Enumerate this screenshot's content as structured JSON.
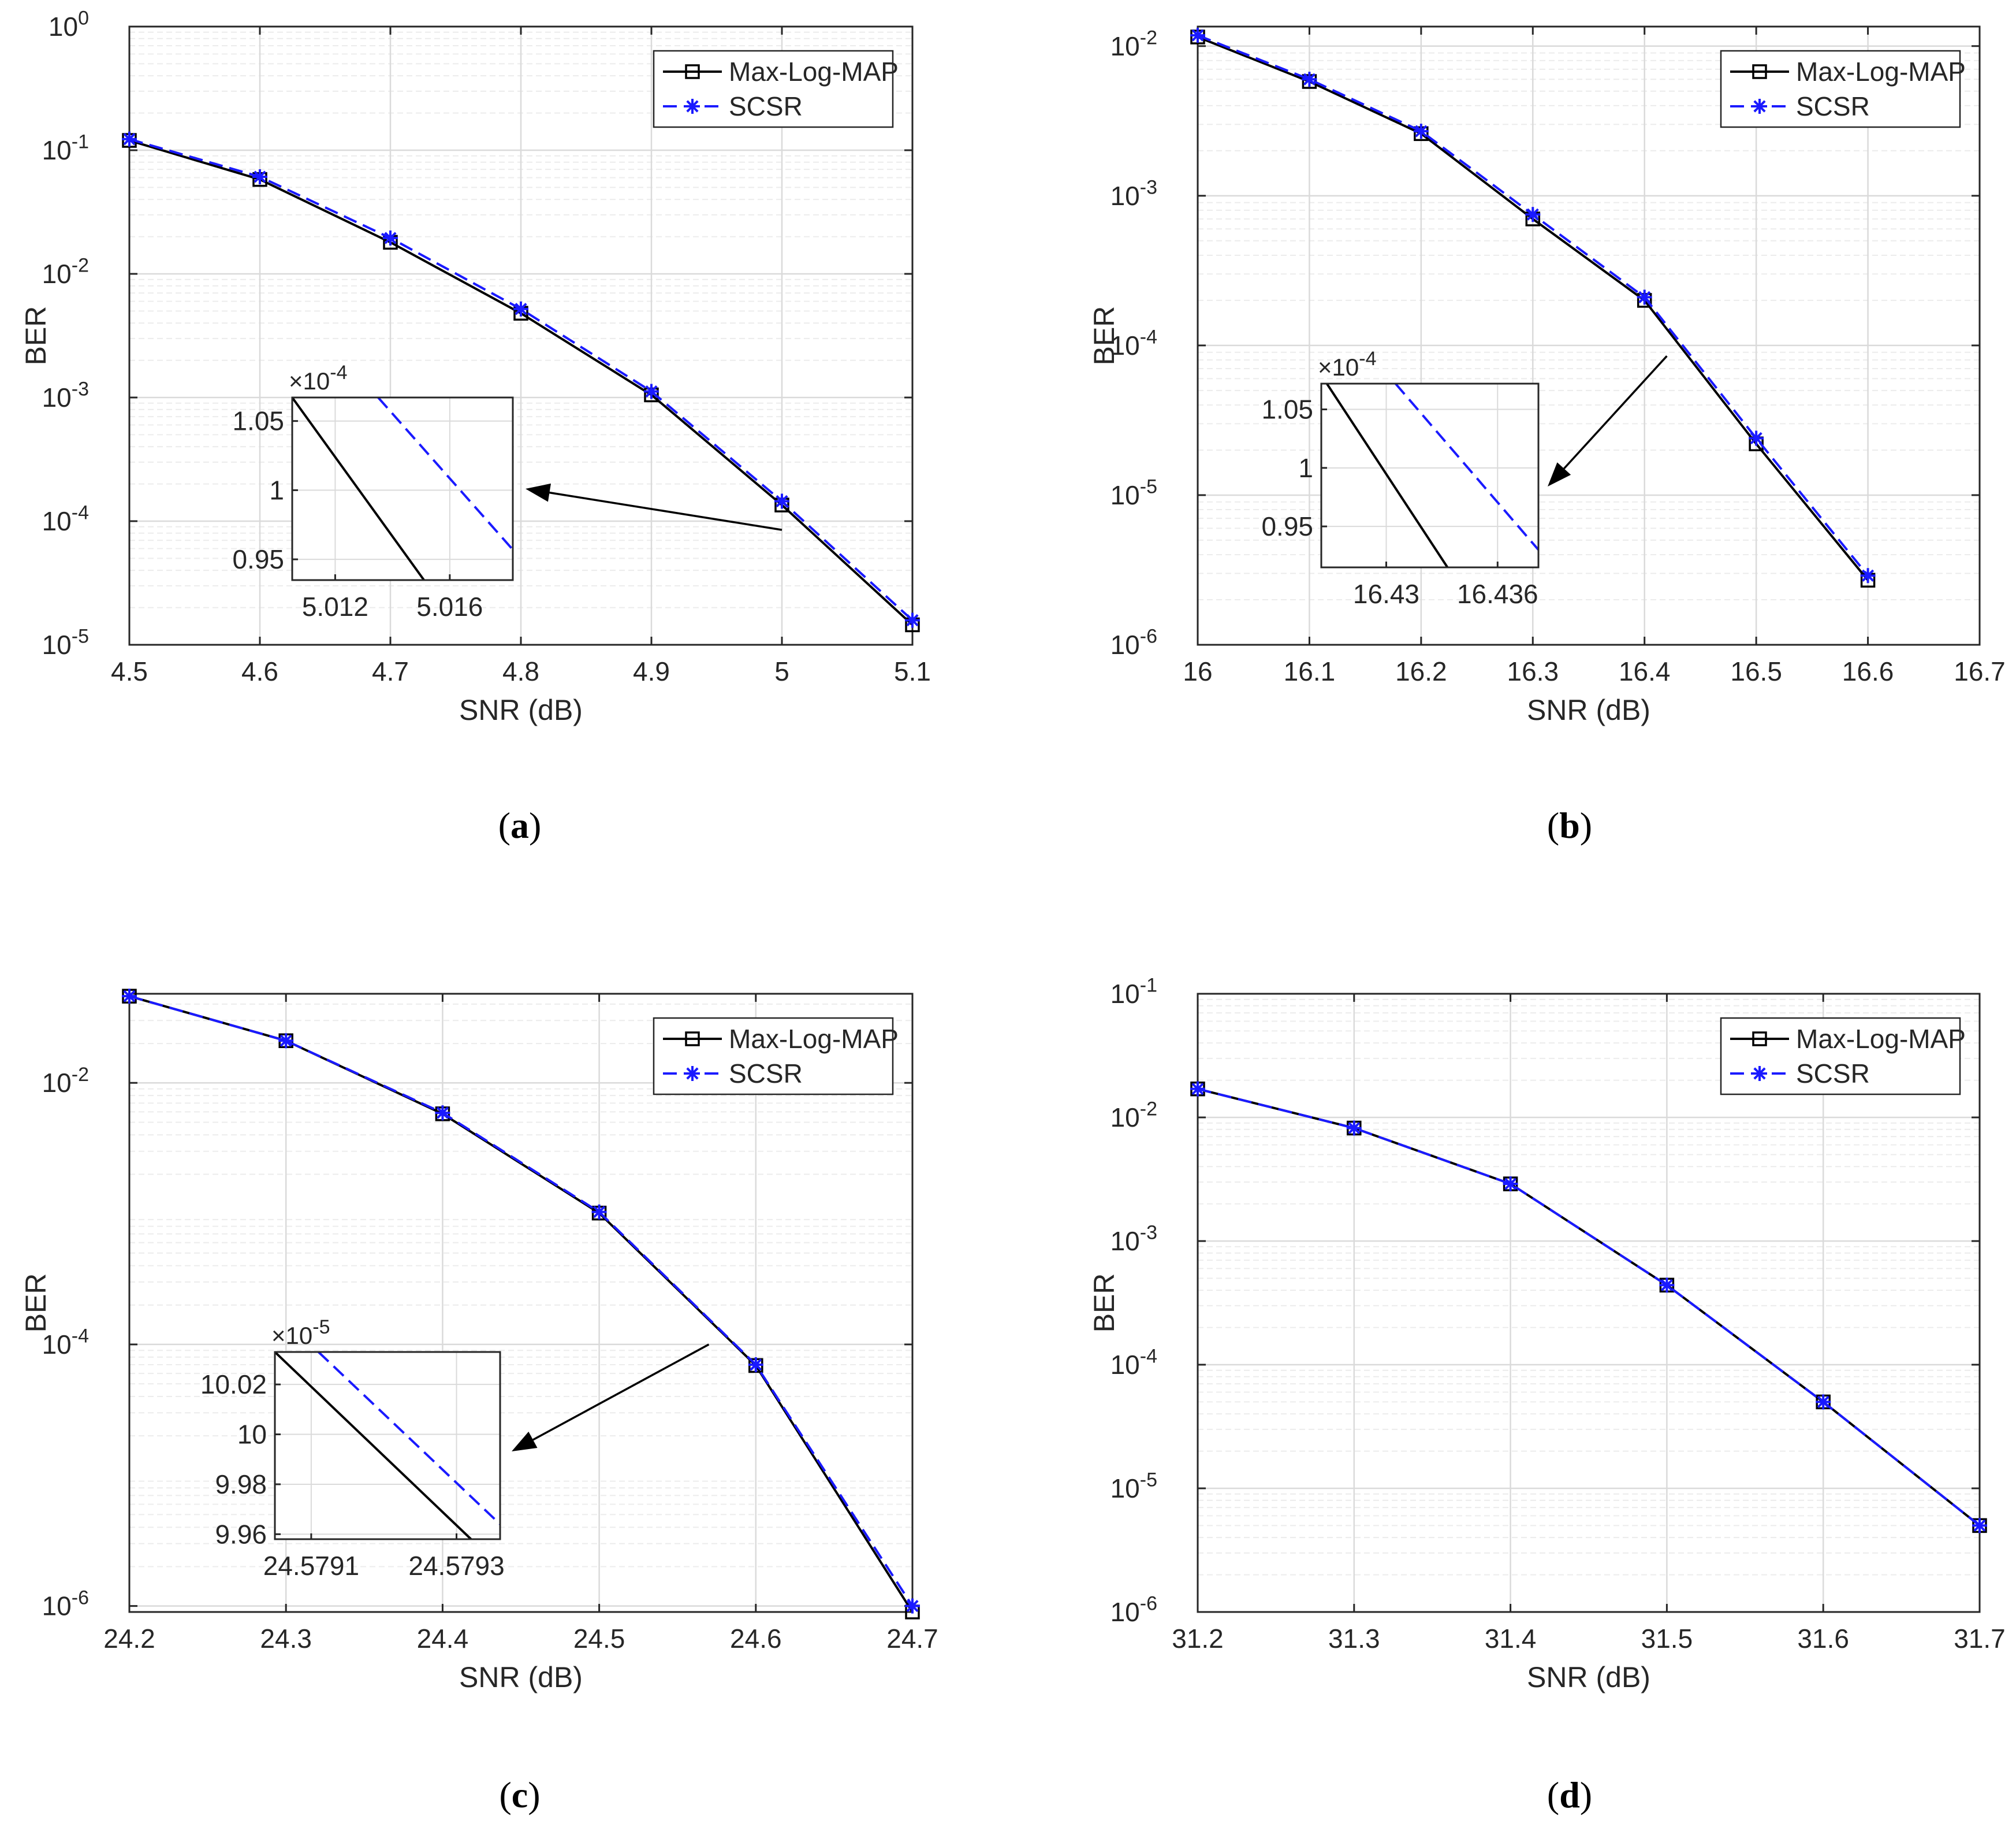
{
  "chart_data": [
    {
      "type": "line",
      "panel": "a",
      "caption_letter": "a",
      "xlabel": "SNR (dB)",
      "ylabel": "BER",
      "yscale": "log",
      "xlim": [
        4.5,
        5.1
      ],
      "ylim": [
        1e-05,
        1
      ],
      "x_ticks": [
        4.5,
        4.6,
        4.7,
        4.8,
        4.9,
        5.0,
        5.1
      ],
      "x_tick_labels": [
        "4.5",
        "4.6",
        "4.7",
        "4.8",
        "4.9",
        "5",
        "5.1"
      ],
      "y_decades": [
        -5,
        -4,
        -3,
        -2,
        -1,
        0
      ],
      "y_tick_labels": [
        "10",
        "10",
        "10",
        "10",
        "10",
        "10"
      ],
      "y_tick_exponents": [
        "-5",
        "-4",
        "-3",
        "-2",
        "-1",
        "0"
      ],
      "grid": true,
      "legend_position": "top-right",
      "series": [
        {
          "name": "Max-Log-MAP",
          "style": "solid",
          "marker": "square",
          "color": "#000000",
          "x": [
            4.5,
            4.6,
            4.7,
            4.8,
            4.9,
            5.0,
            5.1
          ],
          "y": [
            0.12,
            0.058,
            0.018,
            0.0048,
            0.00105,
            0.000135,
            1.45e-05
          ]
        },
        {
          "name": "SCSR",
          "style": "dashed",
          "marker": "asterisk",
          "color": "#1a1aff",
          "x": [
            4.5,
            4.6,
            4.7,
            4.8,
            4.9,
            5.0,
            5.1
          ],
          "y": [
            0.123,
            0.061,
            0.0195,
            0.0052,
            0.00112,
            0.000145,
            1.58e-05
          ]
        }
      ],
      "inset": {
        "multiplier": "10",
        "multiplier_exponent": "-4",
        "xlim": [
          5.0105,
          5.0182
        ],
        "ylim": [
          0.935,
          1.067
        ],
        "x_ticks": [
          5.012,
          5.016
        ],
        "x_tick_labels": [
          "5.012",
          "5.016"
        ],
        "y_ticks": [
          0.95,
          1.0,
          1.05
        ],
        "y_tick_labels": [
          "0.95",
          "1",
          "1.05"
        ],
        "lines": [
          {
            "series": "Max-Log-MAP",
            "x": [
              5.0105,
              5.0151
            ],
            "y": [
              1.067,
              0.935
            ]
          },
          {
            "series": "SCSR",
            "x": [
              5.0135,
              5.0182
            ],
            "y": [
              1.067,
              0.957
            ]
          }
        ],
        "arrow_from": [
          5.0,
          8.5e-05
        ]
      }
    },
    {
      "type": "line",
      "panel": "b",
      "caption_letter": "b",
      "xlabel": "SNR (dB)",
      "ylabel": "BER",
      "yscale": "log",
      "xlim": [
        16.0,
        16.7
      ],
      "ylim": [
        1e-06,
        0.0135
      ],
      "x_ticks": [
        16.0,
        16.1,
        16.2,
        16.3,
        16.4,
        16.5,
        16.6,
        16.7
      ],
      "x_tick_labels": [
        "16",
        "16.1",
        "16.2",
        "16.3",
        "16.4",
        "16.5",
        "16.6",
        "16.7"
      ],
      "y_decades": [
        -6,
        -5,
        -4,
        -3,
        -2
      ],
      "y_tick_labels": [
        "10",
        "10",
        "10",
        "10",
        "10"
      ],
      "y_tick_exponents": [
        "-6",
        "-5",
        "-4",
        "-3",
        "-2"
      ],
      "grid": true,
      "legend_position": "top-right",
      "series": [
        {
          "name": "Max-Log-MAP",
          "style": "solid",
          "marker": "square",
          "color": "#000000",
          "x": [
            16.0,
            16.1,
            16.2,
            16.3,
            16.4,
            16.5,
            16.6
          ],
          "y": [
            0.0115,
            0.0058,
            0.0026,
            0.0007,
            0.0002,
            2.2e-05,
            2.7e-06
          ]
        },
        {
          "name": "SCSR",
          "style": "dashed",
          "marker": "asterisk",
          "color": "#1a1aff",
          "x": [
            16.0,
            16.1,
            16.2,
            16.3,
            16.4,
            16.5,
            16.6
          ],
          "y": [
            0.0118,
            0.006,
            0.0027,
            0.00075,
            0.00021,
            2.4e-05,
            2.9e-06
          ]
        }
      ],
      "inset": {
        "multiplier": "10",
        "multiplier_exponent": "-4",
        "xlim": [
          16.4265,
          16.4382
        ],
        "ylim": [
          0.915,
          1.072
        ],
        "x_ticks": [
          16.43,
          16.436
        ],
        "x_tick_labels": [
          "16.43",
          "16.436"
        ],
        "y_ticks": [
          0.95,
          1.0,
          1.05
        ],
        "y_tick_labels": [
          "0.95",
          "1",
          "1.05"
        ],
        "lines": [
          {
            "series": "Max-Log-MAP",
            "x": [
              16.4268,
              16.4333
            ],
            "y": [
              1.072,
              0.915
            ]
          },
          {
            "series": "SCSR",
            "x": [
              16.4305,
              16.4382
            ],
            "y": [
              1.072,
              0.93
            ]
          }
        ],
        "arrow_from": [
          16.42,
          8.5e-05
        ]
      }
    },
    {
      "type": "line",
      "panel": "c",
      "caption_letter": "c",
      "xlabel": "SNR (dB)",
      "ylabel": "BER",
      "yscale": "log",
      "xlim": [
        24.2,
        24.7
      ],
      "ylim": [
        9e-07,
        0.048
      ],
      "x_ticks": [
        24.2,
        24.3,
        24.4,
        24.5,
        24.6,
        24.7
      ],
      "x_tick_labels": [
        "24.2",
        "24.3",
        "24.4",
        "24.5",
        "24.6",
        "24.7"
      ],
      "y_decades": [
        -6,
        -4,
        -2
      ],
      "y_tick_labels": [
        "10",
        "10",
        "10"
      ],
      "y_tick_exponents": [
        "-6",
        "-4",
        "-2"
      ],
      "grid": true,
      "legend_position": "top-right",
      "series": [
        {
          "name": "Max-Log-MAP",
          "style": "solid",
          "marker": "square",
          "color": "#000000",
          "x": [
            24.2,
            24.3,
            24.4,
            24.5,
            24.6,
            24.7
          ],
          "y": [
            0.046,
            0.021,
            0.0058,
            0.00101,
            6.9e-05,
            9e-07
          ]
        },
        {
          "name": "SCSR",
          "style": "dashed",
          "marker": "asterisk",
          "color": "#1a1aff",
          "x": [
            24.2,
            24.3,
            24.4,
            24.5,
            24.6,
            24.7
          ],
          "y": [
            0.046,
            0.021,
            0.0059,
            0.00103,
            7e-05,
            1e-06
          ]
        }
      ],
      "inset": {
        "multiplier": "10",
        "multiplier_exponent": "-5",
        "xlim": [
          24.57905,
          24.57936
        ],
        "ylim": [
          9.958,
          10.033
        ],
        "x_ticks": [
          24.5791,
          24.5793
        ],
        "x_tick_labels": [
          "24.5791",
          "24.5793"
        ],
        "y_ticks": [
          9.96,
          9.98,
          10.0,
          10.02
        ],
        "y_tick_labels": [
          "9.96",
          "9.98",
          "10",
          "10.02"
        ],
        "lines": [
          {
            "series": "Max-Log-MAP",
            "x": [
              24.57905,
              24.57932
            ],
            "y": [
              10.033,
              9.958
            ]
          },
          {
            "series": "SCSR",
            "x": [
              24.57911,
              24.57936
            ],
            "y": [
              10.033,
              9.964
            ]
          }
        ],
        "arrow_from": [
          24.57,
          0.0001
        ]
      }
    },
    {
      "type": "line",
      "panel": "d",
      "caption_letter": "d",
      "xlabel": "SNR (dB)",
      "ylabel": "BER",
      "yscale": "log",
      "xlim": [
        31.2,
        31.7
      ],
      "ylim": [
        1e-06,
        0.1
      ],
      "x_ticks": [
        31.2,
        31.3,
        31.4,
        31.5,
        31.6,
        31.7
      ],
      "x_tick_labels": [
        "31.2",
        "31.3",
        "31.4",
        "31.5",
        "31.6",
        "31.7"
      ],
      "y_decades": [
        -6,
        -5,
        -4,
        -3,
        -2,
        -1
      ],
      "y_tick_labels": [
        "10",
        "10",
        "10",
        "10",
        "10",
        "10"
      ],
      "y_tick_exponents": [
        "-6",
        "-5",
        "-4",
        "-3",
        "-2",
        "-1"
      ],
      "grid": true,
      "legend_position": "top-right",
      "series": [
        {
          "name": "Max-Log-MAP",
          "style": "solid",
          "marker": "square",
          "color": "#000000",
          "x": [
            31.2,
            31.3,
            31.4,
            31.5,
            31.6,
            31.7
          ],
          "y": [
            0.017,
            0.0082,
            0.0029,
            0.00044,
            5e-05,
            5e-06
          ]
        },
        {
          "name": "SCSR",
          "style": "dashed",
          "marker": "asterisk",
          "color": "#1a1aff",
          "x": [
            31.2,
            31.3,
            31.4,
            31.5,
            31.6,
            31.7
          ],
          "y": [
            0.017,
            0.0082,
            0.0029,
            0.00044,
            5e-05,
            5e-06
          ]
        }
      ]
    }
  ]
}
